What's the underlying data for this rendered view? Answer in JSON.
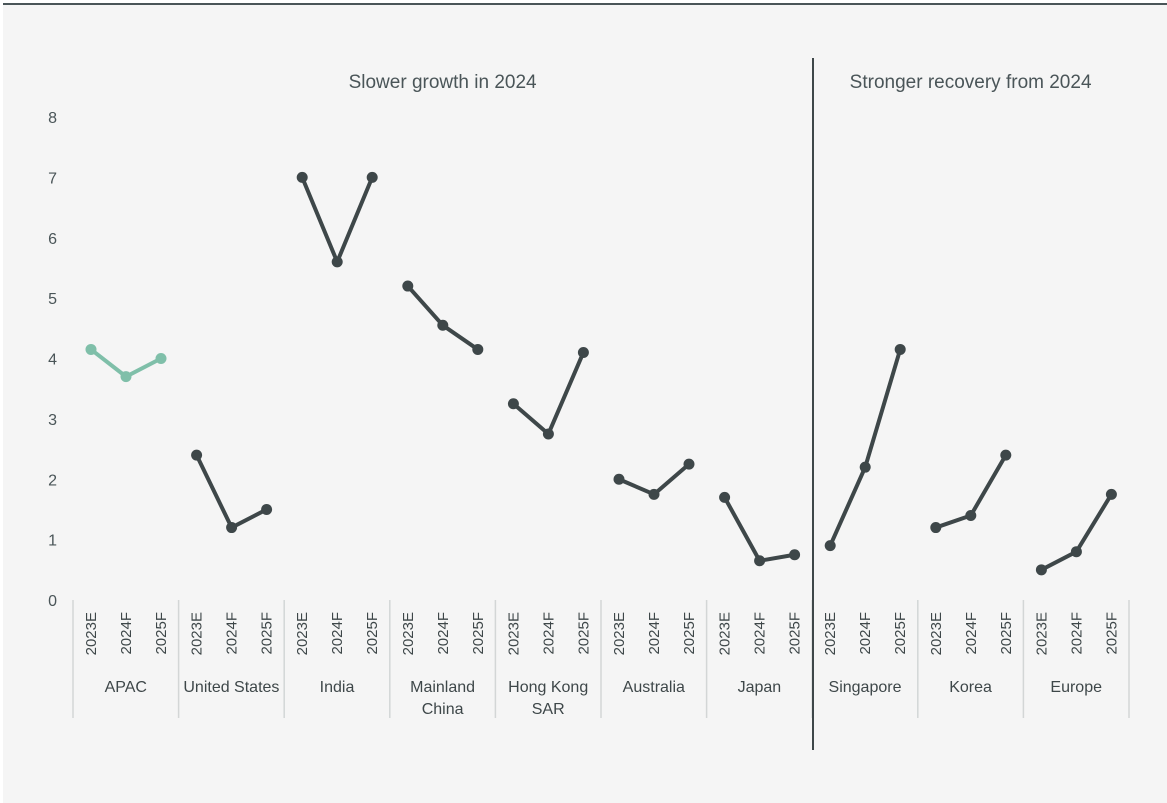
{
  "chart_data": {
    "type": "line",
    "sections": [
      {
        "title": "Slower growth in 2024",
        "groups": [
          0,
          6
        ]
      },
      {
        "title": "Stronger recovery from 2024",
        "groups": [
          7,
          9
        ]
      }
    ],
    "periods": [
      "2023E",
      "2024F",
      "2025F"
    ],
    "ylim": [
      0,
      8
    ],
    "yticks": [
      "0",
      "1",
      "2",
      "3",
      "4",
      "5",
      "6",
      "7",
      "8"
    ],
    "grid": false,
    "series": [
      {
        "label_lines": [
          "APAC"
        ],
        "values": [
          4.15,
          3.7,
          4.0
        ],
        "color": "#7fbfa9"
      },
      {
        "label_lines": [
          "United States"
        ],
        "values": [
          2.4,
          1.2,
          1.5
        ],
        "color": "#3e4749"
      },
      {
        "label_lines": [
          "India"
        ],
        "values": [
          7.0,
          5.6,
          7.0
        ],
        "color": "#3e4749"
      },
      {
        "label_lines": [
          "Mainland",
          "China"
        ],
        "values": [
          5.2,
          4.55,
          4.15
        ],
        "color": "#3e4749"
      },
      {
        "label_lines": [
          "Hong Kong",
          "SAR"
        ],
        "values": [
          3.25,
          2.75,
          4.1
        ],
        "color": "#3e4749"
      },
      {
        "label_lines": [
          "Australia"
        ],
        "values": [
          2.0,
          1.75,
          2.25
        ],
        "color": "#3e4749"
      },
      {
        "label_lines": [
          "Japan"
        ],
        "values": [
          1.7,
          0.65,
          0.75
        ],
        "color": "#3e4749"
      },
      {
        "label_lines": [
          "Singapore"
        ],
        "values": [
          0.9,
          2.2,
          4.15
        ],
        "color": "#3e4749"
      },
      {
        "label_lines": [
          "Korea"
        ],
        "values": [
          1.2,
          1.4,
          2.4
        ],
        "color": "#3e4749"
      },
      {
        "label_lines": [
          "Europe"
        ],
        "values": [
          0.5,
          0.8,
          1.75
        ],
        "color": "#3e4749"
      }
    ]
  }
}
